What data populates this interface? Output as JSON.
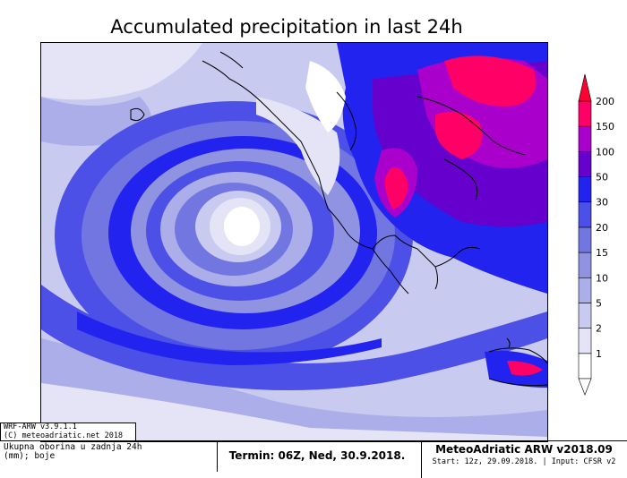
{
  "title": "Accumulated precipitation in last 24h",
  "legend": {
    "levels": [
      "1",
      "2",
      "5",
      "10",
      "15",
      "20",
      "30",
      "50",
      "100",
      "150",
      "200"
    ],
    "colors": [
      "#ffffff",
      "#e4e4f6",
      "#c8caf0",
      "#acaeea",
      "#8f93e2",
      "#7276e0",
      "#4c50e6",
      "#2323ef",
      "#6600cc",
      "#aa00cc",
      "#ff0066"
    ]
  },
  "model": {
    "version": "WRF-ARW v3.9.1.1",
    "copyright": "(C) meteoadriatic.net 2018"
  },
  "description": {
    "line1": "Ukupna oborina u zadnja 24h",
    "line2": "(mm); boje"
  },
  "termin": "Termin: 06Z, Ned, 30.9.2018.",
  "brand": "MeteoAdriatic ARW v2018.09",
  "start": "Start: 12z, 29.09.2018. | Input: CFSR v2"
}
